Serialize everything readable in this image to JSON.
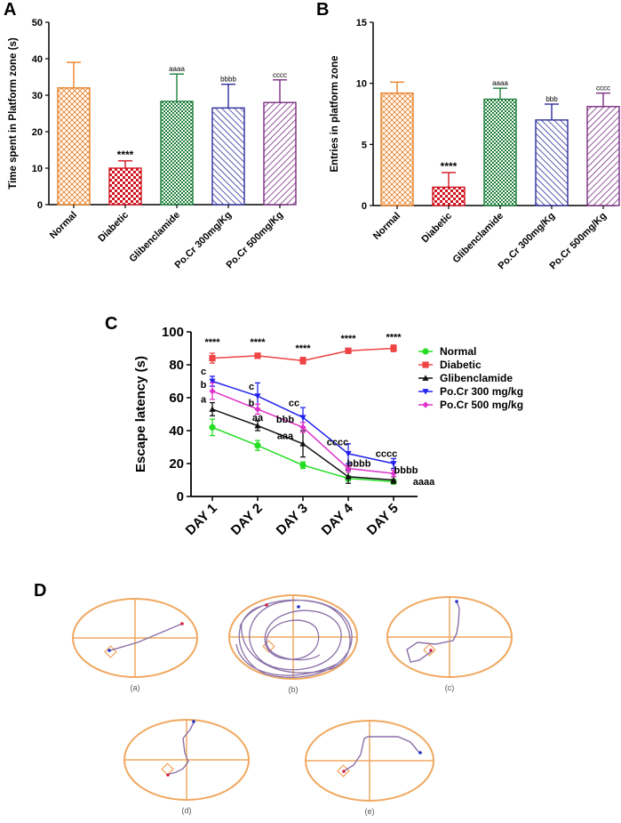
{
  "panel_letters": {
    "a": "A",
    "b": "B",
    "c": "C",
    "d": "D"
  },
  "colors": {
    "Normal": "#E8822A",
    "Diabetic": "#D01722",
    "Glibenclamide": "#1D7F3A",
    "Po.Cr 300mg/Kg": "#2E2F9A",
    "Po.Cr 500mg/Kg": "#7A2E82",
    "line_normal": "#22DD22",
    "line_diabetic": "#EE4444",
    "line_glib": "#111111",
    "line_po300": "#2222EE",
    "line_po500": "#DD33CC",
    "pool": "#F0A860",
    "path": "#8A70A8"
  },
  "chart_data": [
    {
      "id": "A",
      "type": "bar",
      "ylabel": "Time spent in Platform zone (s)",
      "ylim": [
        0,
        50
      ],
      "yticks": [
        "0",
        "10",
        "20",
        "30",
        "40",
        "50"
      ],
      "categories": [
        "Normal",
        "Diabetic",
        "Glibenclamide",
        "Po.Cr 300mg/Kg",
        "Po.Cr 500mg/Kg"
      ],
      "values": [
        32,
        10,
        28.3,
        26.5,
        28
      ],
      "errors": [
        7,
        2,
        7.5,
        6.5,
        6.2
      ],
      "significance": [
        "",
        "****",
        "aaaa",
        "bbbb",
        "cccc"
      ]
    },
    {
      "id": "B",
      "type": "bar",
      "ylabel": "Entries in platform zone",
      "ylim": [
        0,
        15
      ],
      "yticks": [
        "0",
        "5",
        "10",
        "15"
      ],
      "categories": [
        "Normal",
        "Diabetic",
        "Glibenclamide",
        "Po.Cr 300mg/Kg",
        "Po.Cr 500mg/Kg"
      ],
      "values": [
        9.2,
        1.5,
        8.7,
        7,
        8.1
      ],
      "errors": [
        0.9,
        1.2,
        0.9,
        1.3,
        1.1
      ],
      "significance": [
        "",
        "****",
        "aaaa",
        "bbb",
        "cccc"
      ]
    },
    {
      "id": "C",
      "type": "line",
      "ylabel": "Escape latency (s)",
      "ylim": [
        0,
        100
      ],
      "yticks": [
        "0",
        "20",
        "40",
        "60",
        "80",
        "100"
      ],
      "categories": [
        "DAY 1",
        "DAY 2",
        "DAY 3",
        "DAY 4",
        "DAY 5"
      ],
      "series": [
        {
          "name": "Normal",
          "values": [
            42,
            31,
            19,
            11,
            9
          ],
          "errors": [
            5,
            3,
            2,
            1.5,
            1.5
          ]
        },
        {
          "name": "Diabetic",
          "values": [
            84,
            85.5,
            82.5,
            88.5,
            90
          ],
          "errors": [
            3,
            1,
            2,
            1.5,
            2
          ]
        },
        {
          "name": "Glibenclamide",
          "values": [
            53,
            43,
            32,
            12,
            10
          ],
          "errors": [
            4,
            3,
            8,
            4,
            2
          ]
        },
        {
          "name": "Po.Cr 300 mg/kg",
          "values": [
            70,
            61,
            48,
            26,
            20
          ],
          "errors": [
            3,
            8,
            6,
            6,
            3
          ]
        },
        {
          "name": "Po.Cr 500 mg/kg",
          "values": [
            64,
            53,
            42,
            17,
            14
          ],
          "errors": [
            5,
            3,
            3,
            2,
            2
          ]
        }
      ],
      "annotations": [
        {
          "day": 0,
          "y": 92,
          "text": "****"
        },
        {
          "day": 1,
          "y": 92,
          "text": "****"
        },
        {
          "day": 2,
          "y": 88,
          "text": "****"
        },
        {
          "day": 3,
          "y": 94,
          "text": "****"
        },
        {
          "day": 4,
          "y": 95,
          "text": "****"
        },
        {
          "day": 0,
          "y": 74,
          "text": "c",
          "dx": -10
        },
        {
          "day": 0,
          "y": 66,
          "text": "b",
          "dx": -10
        },
        {
          "day": 0,
          "y": 57,
          "text": "a",
          "dx": -10
        },
        {
          "day": 1,
          "y": 65,
          "text": "c",
          "dx": -7
        },
        {
          "day": 1,
          "y": 55,
          "text": "b",
          "dx": -7
        },
        {
          "day": 1,
          "y": 46,
          "text": "aa",
          "dx": 0
        },
        {
          "day": 2,
          "y": 55,
          "text": "cc",
          "dx": -10
        },
        {
          "day": 2,
          "y": 45,
          "text": "bbb",
          "dx": -20
        },
        {
          "day": 2,
          "y": 35,
          "text": "aaa",
          "dx": -20
        },
        {
          "day": 3,
          "y": 31,
          "text": "cccc",
          "dx": -12
        },
        {
          "day": 3,
          "y": 18,
          "text": "bbbb",
          "dx": 12
        },
        {
          "day": 4,
          "y": 24,
          "text": "cccc",
          "dx": -8
        },
        {
          "day": 4,
          "y": 14,
          "text": "bbbb",
          "dx": 14
        },
        {
          "day": 4,
          "y": 7,
          "text": "aaaa",
          "dx": 34
        }
      ]
    }
  ],
  "panel_d": {
    "captions": [
      "(a)",
      "(b)",
      "(c)",
      "(d)",
      "(e)"
    ]
  }
}
